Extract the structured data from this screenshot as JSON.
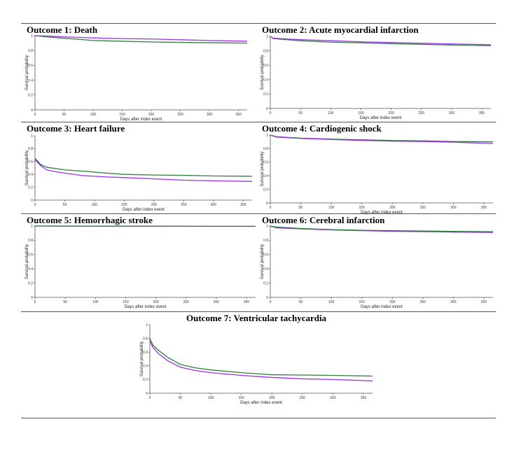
{
  "series_colors": {
    "Green": "#2e7d3e",
    "Purple": "#9b30e8"
  },
  "chart_data": [
    {
      "type": "line",
      "title": "Outcome 1: Death",
      "xlabel": "Days after index event",
      "ylabel": "Survival probability",
      "xticks": [
        0,
        50,
        100,
        150,
        200,
        250,
        300,
        350
      ],
      "xlim": [
        0,
        365
      ],
      "yticks": [
        0,
        0.2,
        0.4,
        0.6,
        0.8,
        1
      ],
      "ylim": [
        0,
        1
      ],
      "series": [
        {
          "name": "Green",
          "x": [
            0,
            20,
            50,
            80,
            100,
            150,
            200,
            250,
            300,
            365
          ],
          "y": [
            1,
            0.985,
            0.965,
            0.948,
            0.935,
            0.925,
            0.915,
            0.91,
            0.905,
            0.9
          ]
        },
        {
          "name": "Purple",
          "x": [
            0,
            20,
            50,
            100,
            150,
            200,
            250,
            300,
            365
          ],
          "y": [
            1,
            0.995,
            0.985,
            0.97,
            0.96,
            0.955,
            0.945,
            0.935,
            0.925
          ]
        }
      ]
    },
    {
      "type": "line",
      "title": "Outcome 2: Acute myocardial infarction",
      "xlabel": "Days after index event",
      "ylabel": "Survival probability",
      "xticks": [
        0,
        50,
        100,
        150,
        200,
        250,
        300,
        350
      ],
      "xlim": [
        0,
        365
      ],
      "yticks": [
        0,
        0.2,
        0.4,
        0.6,
        0.8,
        1
      ],
      "ylim": [
        0,
        1
      ],
      "series": [
        {
          "name": "Green",
          "x": [
            0,
            5,
            25,
            50,
            100,
            150,
            200,
            250,
            300,
            365
          ],
          "y": [
            1,
            0.97,
            0.955,
            0.94,
            0.92,
            0.91,
            0.9,
            0.89,
            0.88,
            0.87
          ]
        },
        {
          "name": "Purple",
          "x": [
            0,
            5,
            25,
            50,
            100,
            150,
            200,
            250,
            300,
            365
          ],
          "y": [
            1,
            0.975,
            0.965,
            0.955,
            0.94,
            0.925,
            0.915,
            0.905,
            0.895,
            0.885
          ]
        }
      ]
    },
    {
      "type": "line",
      "title": "Outcome 3: Heart failure",
      "xlabel": "Days after index event",
      "ylabel": "Survival probability",
      "xticks": [
        0,
        50,
        100,
        150,
        200,
        250,
        300,
        350
      ],
      "xlim": [
        0,
        365
      ],
      "yticks": [
        0,
        0.2,
        0.4,
        0.6,
        0.8,
        1
      ],
      "ylim": [
        0,
        1
      ],
      "series": [
        {
          "name": "Green",
          "x": [
            0,
            10,
            20,
            35,
            50,
            80,
            120,
            150,
            200,
            250,
            300,
            365
          ],
          "y": [
            0.65,
            0.55,
            0.51,
            0.49,
            0.47,
            0.45,
            0.42,
            0.4,
            0.39,
            0.385,
            0.375,
            0.37
          ]
        },
        {
          "name": "Purple",
          "x": [
            0,
            10,
            20,
            35,
            50,
            80,
            120,
            150,
            200,
            250,
            300,
            365
          ],
          "y": [
            0.63,
            0.53,
            0.47,
            0.44,
            0.42,
            0.38,
            0.36,
            0.35,
            0.33,
            0.31,
            0.3,
            0.29
          ]
        }
      ]
    },
    {
      "type": "line",
      "title": "Outcome 4: Cardiogenic shock",
      "xlabel": "Days after index event",
      "ylabel": "Survival probability",
      "xticks": [
        0,
        50,
        100,
        150,
        200,
        250,
        300,
        350
      ],
      "xlim": [
        0,
        365
      ],
      "yticks": [
        0,
        0.2,
        0.4,
        0.6,
        0.8,
        1
      ],
      "ylim": [
        0,
        1
      ],
      "series": [
        {
          "name": "Green",
          "x": [
            0,
            10,
            50,
            100,
            150,
            200,
            250,
            300,
            365
          ],
          "y": [
            1,
            0.975,
            0.955,
            0.94,
            0.93,
            0.92,
            0.915,
            0.905,
            0.9
          ]
        },
        {
          "name": "Purple",
          "x": [
            0,
            10,
            50,
            100,
            150,
            200,
            250,
            300,
            365
          ],
          "y": [
            1,
            0.97,
            0.95,
            0.935,
            0.92,
            0.91,
            0.905,
            0.895,
            0.875
          ]
        }
      ]
    },
    {
      "type": "line",
      "title": "Outcome 5: Hemorrhagic stroke",
      "xlabel": "Days after index event",
      "ylabel": "Survival probability",
      "xticks": [
        0,
        50,
        100,
        150,
        200,
        250,
        300,
        350
      ],
      "xlim": [
        0,
        365
      ],
      "yticks": [
        0,
        0.2,
        0.4,
        0.6,
        0.8,
        1
      ],
      "ylim": [
        0,
        1
      ],
      "series": [
        {
          "name": "Purple",
          "x": [
            0,
            100,
            200,
            300,
            365
          ],
          "y": [
            1,
            0.998,
            0.997,
            0.996,
            0.996
          ]
        },
        {
          "name": "Green",
          "x": [
            0,
            100,
            200,
            300,
            365
          ],
          "y": [
            1,
            0.998,
            0.997,
            0.995,
            0.995
          ]
        }
      ]
    },
    {
      "type": "line",
      "title": "Outcome 6: Cerebral infarction",
      "xlabel": "Days after index event",
      "ylabel": "Survival probability",
      "xticks": [
        0,
        50,
        100,
        150,
        200,
        250,
        300,
        350
      ],
      "xlim": [
        0,
        365
      ],
      "yticks": [
        0,
        0.2,
        0.4,
        0.6,
        0.8,
        1
      ],
      "ylim": [
        0,
        1
      ],
      "series": [
        {
          "name": "Purple",
          "x": [
            0,
            10,
            50,
            100,
            150,
            200,
            250,
            300,
            365
          ],
          "y": [
            1,
            0.975,
            0.96,
            0.945,
            0.935,
            0.925,
            0.92,
            0.915,
            0.91
          ]
        },
        {
          "name": "Green",
          "x": [
            0,
            10,
            50,
            100,
            150,
            200,
            250,
            300,
            365
          ],
          "y": [
            1,
            0.985,
            0.965,
            0.95,
            0.94,
            0.935,
            0.93,
            0.925,
            0.92
          ]
        }
      ]
    },
    {
      "type": "line",
      "title": "Outcome 7: Ventricular tachycardia",
      "xlabel": "Days after index event",
      "ylabel": "Survival probability",
      "xticks": [
        0,
        50,
        100,
        150,
        200,
        250,
        300,
        350
      ],
      "xlim": [
        0,
        365
      ],
      "yticks": [
        0,
        0.2,
        0.4,
        0.6,
        0.8,
        1
      ],
      "ylim": [
        0,
        1
      ],
      "series": [
        {
          "name": "Green",
          "x": [
            0,
            5,
            15,
            30,
            50,
            75,
            100,
            150,
            200,
            250,
            300,
            365
          ],
          "y": [
            0.8,
            0.7,
            0.62,
            0.52,
            0.42,
            0.37,
            0.34,
            0.3,
            0.27,
            0.265,
            0.26,
            0.25
          ]
        },
        {
          "name": "Purple",
          "x": [
            0,
            5,
            15,
            30,
            50,
            75,
            100,
            150,
            200,
            250,
            300,
            365
          ],
          "y": [
            0.76,
            0.67,
            0.57,
            0.47,
            0.38,
            0.33,
            0.3,
            0.26,
            0.23,
            0.21,
            0.2,
            0.18
          ]
        }
      ]
    }
  ]
}
